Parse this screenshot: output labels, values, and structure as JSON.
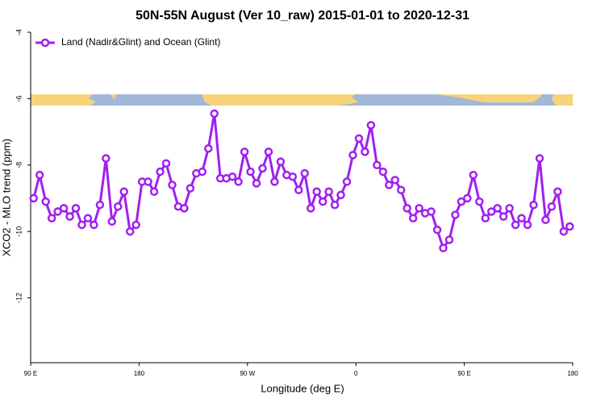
{
  "chart_data": {
    "type": "line",
    "title": "50N-55N August (Ver 10_raw)   2015-01-01 to 2020-12-31",
    "x_label": "Longitude (deg E)",
    "y_label": "XCO2 - MLO trend (ppm)",
    "xlim": [
      90,
      540
    ],
    "ylim": [
      -14,
      -4
    ],
    "xticks": [
      {
        "value": 90,
        "label": "90 E"
      },
      180,
      {
        "value": 270,
        "label": "90 W"
      },
      {
        "value": 360,
        "label": "0"
      },
      {
        "value": 450,
        "label": "90 E"
      },
      {
        "value": 540,
        "label": "180"
      }
    ],
    "yticks": [
      -12,
      -10,
      -8,
      -6,
      -4
    ],
    "legend": "top-left",
    "x": [
      92.5,
      97.5,
      102.5,
      107.5,
      112.5,
      117.5,
      122.5,
      127.5,
      132.5,
      137.5,
      142.5,
      147.5,
      152.5,
      157.5,
      162.5,
      167.5,
      172.5,
      177.5,
      182.5,
      187.5,
      192.5,
      197.5,
      202.5,
      207.5,
      212.5,
      217.5,
      222.5,
      227.5,
      232.5,
      237.5,
      242.5,
      247.5,
      252.5,
      257.5,
      262.5,
      267.5,
      272.5,
      277.5,
      282.5,
      287.5,
      292.5,
      297.5,
      302.5,
      307.5,
      312.5,
      317.5,
      322.5,
      327.5,
      332.5,
      337.5,
      342.5,
      347.5,
      352.5,
      357.5,
      362.5,
      367.5,
      372.5,
      377.5,
      382.5,
      387.5,
      392.5,
      397.5,
      402.5,
      407.5,
      412.5,
      417.5,
      422.5,
      427.5,
      432.5,
      437.5,
      442.5,
      447.5,
      452.5,
      457.5,
      462.5,
      467.5,
      472.5,
      477.5,
      482.5,
      487.5,
      492.5,
      497.5,
      502.5,
      507.5,
      512.5,
      517.5,
      522.5,
      527.5,
      532.5,
      537.5
    ],
    "series": [
      {
        "name": "Land (Nadir&Glint) and Ocean (Glint)",
        "color": "#a020f0",
        "values": [
          -9.0,
          -8.3,
          -9.1,
          -9.6,
          -9.4,
          -9.3,
          -9.55,
          -9.3,
          -9.8,
          -9.6,
          -9.8,
          -9.2,
          -7.8,
          -9.7,
          -9.25,
          -8.8,
          -10.0,
          -9.8,
          -8.5,
          -8.5,
          -8.8,
          -8.2,
          -7.95,
          -8.6,
          -9.25,
          -9.3,
          -8.7,
          -8.25,
          -8.2,
          -7.5,
          -6.45,
          -8.4,
          -8.4,
          -8.35,
          -8.5,
          -7.6,
          -8.2,
          -8.55,
          -8.1,
          -7.6,
          -8.5,
          -7.9,
          -8.3,
          -8.35,
          -8.75,
          -8.25,
          -9.3,
          -8.8,
          -9.1,
          -8.8,
          -9.2,
          -8.9,
          -8.5,
          -7.7,
          -7.2,
          -7.6,
          -6.8,
          -8.0,
          -8.2,
          -8.6,
          -8.45,
          -8.75,
          -9.3,
          -9.6,
          -9.3,
          -9.45,
          -9.4,
          -9.95,
          -10.5,
          -10.25,
          -9.5,
          -9.1,
          -9.0,
          -8.3,
          -9.1,
          -9.6,
          -9.4,
          -9.3,
          -9.55,
          -9.3,
          -9.8,
          -9.6,
          -9.8,
          -9.2,
          -7.8,
          -9.65,
          -9.25,
          -8.8,
          -10.0,
          -9.85
        ]
      }
    ]
  }
}
